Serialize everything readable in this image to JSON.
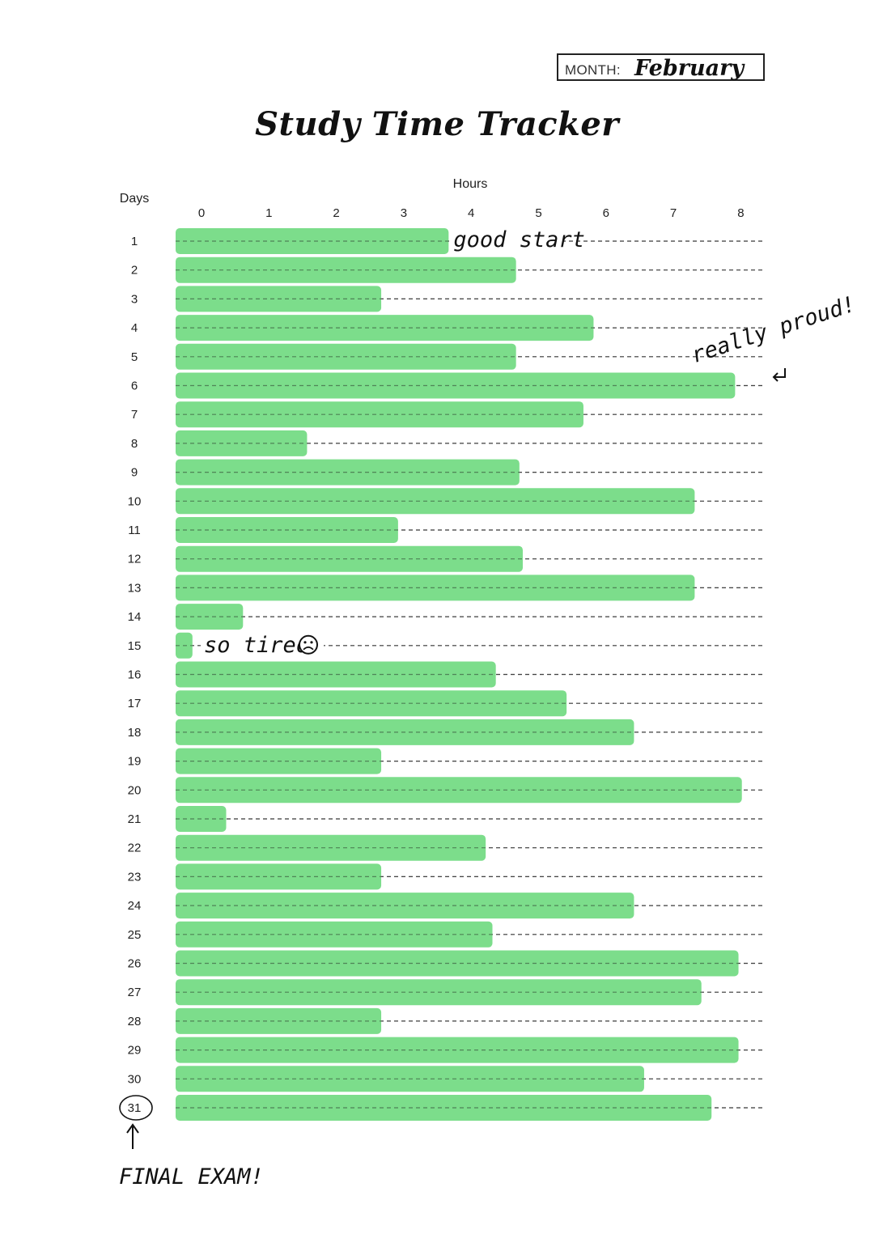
{
  "header": {
    "month_label": "MONTH:",
    "month_value": "February"
  },
  "chart_data": {
    "type": "bar",
    "orientation": "horizontal",
    "title": "Study Time Tracker",
    "xlabel": "Hours",
    "ylabel": "Days",
    "xlim": [
      0,
      8.4
    ],
    "xticks": [
      "0",
      "1",
      "2",
      "3",
      "4",
      "5",
      "6",
      "7",
      "8"
    ],
    "categories": [
      "1",
      "2",
      "3",
      "4",
      "5",
      "6",
      "7",
      "8",
      "9",
      "10",
      "11",
      "12",
      "13",
      "14",
      "15",
      "16",
      "17",
      "18",
      "19",
      "20",
      "21",
      "22",
      "23",
      "24",
      "25",
      "26",
      "27",
      "28",
      "29",
      "30",
      "31"
    ],
    "values": [
      4.05,
      5.05,
      3.05,
      6.2,
      5.05,
      8.3,
      6.05,
      1.95,
      5.1,
      7.7,
      3.3,
      5.15,
      7.7,
      1.0,
      0.25,
      4.75,
      5.8,
      6.8,
      3.05,
      8.4,
      0.75,
      4.6,
      3.05,
      6.8,
      4.7,
      8.35,
      7.8,
      3.05,
      8.35,
      6.95,
      7.95
    ],
    "bar_color": "#5fd672",
    "grid": "dashed horizontal lines per day",
    "annotations": [
      {
        "text": "good start",
        "day": "1"
      },
      {
        "text": "really proud!",
        "day": "6"
      },
      {
        "text": "so tired",
        "day": "15"
      },
      {
        "text": "FINAL EXAM!",
        "day": "31"
      }
    ]
  }
}
